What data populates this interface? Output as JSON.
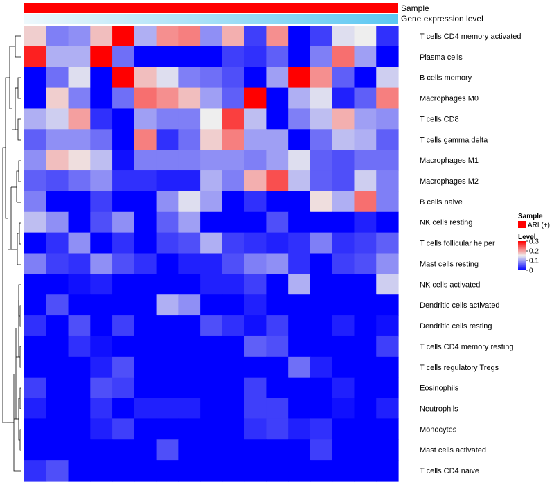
{
  "chart_data": {
    "type": "heatmap",
    "title": "",
    "xlabel": "",
    "ylabel": "",
    "column_annotations": [
      {
        "label": "Sample",
        "color": "#ff0000"
      },
      {
        "label": "Gene expression level",
        "gradient": [
          "#eef8fc",
          "#5bc7f2"
        ]
      }
    ],
    "n_columns": 17,
    "rows": [
      "T cells CD4 memory activated",
      "Plasma cells",
      "B cells memory",
      "Macrophages M0",
      "T cells CD8",
      "T cells gamma delta",
      "Macrophages M1",
      "Macrophages M2",
      "B cells naive",
      "NK cells resting",
      "T cells follicular helper",
      "Mast cells resting",
      "NK cells activated",
      "Dendritic cells activated",
      "Dendritic cells resting",
      "T cells CD4 memory resting",
      "T cells regulatory  Tregs",
      "Eosinophils",
      "Neutrophils",
      "Monocytes",
      "Mast cells activated",
      "T cells CD4 naive"
    ],
    "values": [
      [
        0.17,
        0.08,
        0.09,
        0.18,
        0.3,
        0.11,
        0.21,
        0.22,
        0.09,
        0.19,
        0.04,
        0.21,
        0.0,
        0.04,
        0.14,
        0.15,
        0.03
      ],
      [
        0.28,
        0.11,
        0.11,
        0.3,
        0.07,
        0.0,
        0.0,
        0.0,
        0.0,
        0.04,
        0.03,
        0.06,
        0.0,
        0.08,
        0.23,
        0.1,
        0.0
      ],
      [
        0.0,
        0.07,
        0.14,
        0.0,
        0.3,
        0.18,
        0.14,
        0.08,
        0.07,
        0.05,
        0.0,
        0.1,
        0.3,
        0.21,
        0.06,
        0.0,
        0.13
      ],
      [
        0.0,
        0.17,
        0.08,
        0.0,
        0.07,
        0.23,
        0.21,
        0.18,
        0.1,
        0.06,
        0.3,
        0.0,
        0.11,
        0.14,
        0.02,
        0.06,
        0.22
      ],
      [
        0.11,
        0.13,
        0.2,
        0.03,
        0.0,
        0.1,
        0.08,
        0.08,
        0.15,
        0.26,
        0.12,
        0.0,
        0.08,
        0.12,
        0.19,
        0.1,
        0.09
      ],
      [
        0.06,
        0.09,
        0.09,
        0.07,
        0.0,
        0.22,
        0.03,
        0.07,
        0.17,
        0.22,
        0.1,
        0.1,
        0.0,
        0.07,
        0.12,
        0.11,
        0.06
      ],
      [
        0.09,
        0.18,
        0.16,
        0.12,
        0.01,
        0.08,
        0.08,
        0.08,
        0.09,
        0.09,
        0.08,
        0.1,
        0.14,
        0.06,
        0.05,
        0.07,
        0.07
      ],
      [
        0.06,
        0.05,
        0.07,
        0.09,
        0.03,
        0.03,
        0.02,
        0.02,
        0.11,
        0.08,
        0.19,
        0.25,
        0.12,
        0.06,
        0.05,
        0.13,
        0.08
      ],
      [
        0.08,
        0.0,
        0.0,
        0.04,
        0.0,
        0.0,
        0.09,
        0.14,
        0.1,
        0.0,
        0.03,
        0.0,
        0.0,
        0.16,
        0.11,
        0.23,
        0.08
      ],
      [
        0.12,
        0.09,
        0.0,
        0.05,
        0.09,
        0.0,
        0.06,
        0.1,
        0.0,
        0.0,
        0.0,
        0.05,
        0.0,
        0.0,
        0.0,
        0.02,
        0.0
      ],
      [
        0.0,
        0.03,
        0.09,
        0.0,
        0.03,
        0.0,
        0.04,
        0.05,
        0.11,
        0.04,
        0.03,
        0.02,
        0.03,
        0.08,
        0.03,
        0.04,
        0.06
      ],
      [
        0.08,
        0.04,
        0.03,
        0.09,
        0.05,
        0.03,
        0.0,
        0.02,
        0.02,
        0.05,
        0.08,
        0.09,
        0.03,
        0.0,
        0.04,
        0.05,
        0.09
      ],
      [
        0.0,
        0.0,
        0.01,
        0.02,
        0.0,
        0.0,
        0.0,
        0.0,
        0.02,
        0.02,
        0.04,
        0.0,
        0.11,
        0.0,
        0.0,
        0.0,
        0.13
      ],
      [
        0.0,
        0.05,
        0.0,
        0.0,
        0.0,
        0.0,
        0.11,
        0.09,
        0.0,
        0.0,
        0.02,
        0.0,
        0.0,
        0.0,
        0.0,
        0.0,
        0.0
      ],
      [
        0.03,
        0.0,
        0.05,
        0.0,
        0.04,
        0.0,
        0.0,
        0.0,
        0.05,
        0.03,
        0.01,
        0.04,
        0.0,
        0.0,
        0.02,
        0.0,
        0.01
      ],
      [
        0.0,
        0.0,
        0.03,
        0.01,
        0.0,
        0.0,
        0.0,
        0.0,
        0.0,
        0.0,
        0.06,
        0.05,
        0.0,
        0.0,
        0.0,
        0.0,
        0.04
      ],
      [
        0.0,
        0.0,
        0.0,
        0.02,
        0.05,
        0.0,
        0.0,
        0.0,
        0.0,
        0.0,
        0.0,
        0.0,
        0.07,
        0.02,
        0.0,
        0.0,
        0.0
      ],
      [
        0.04,
        0.0,
        0.0,
        0.05,
        0.04,
        0.0,
        0.0,
        0.0,
        0.0,
        0.0,
        0.04,
        0.0,
        0.0,
        0.0,
        0.02,
        0.0,
        0.0
      ],
      [
        0.02,
        0.0,
        0.0,
        0.03,
        0.0,
        0.02,
        0.02,
        0.02,
        0.0,
        0.0,
        0.04,
        0.04,
        0.0,
        0.0,
        0.01,
        0.0,
        0.02
      ],
      [
        0.0,
        0.0,
        0.0,
        0.02,
        0.04,
        0.0,
        0.0,
        0.0,
        0.0,
        0.0,
        0.03,
        0.04,
        0.02,
        0.03,
        0.0,
        0.0,
        0.0
      ],
      [
        0.0,
        0.0,
        0.0,
        0.0,
        0.0,
        0.0,
        0.05,
        0.0,
        0.0,
        0.0,
        0.0,
        0.0,
        0.0,
        0.04,
        0.0,
        0.0,
        0.0
      ],
      [
        0.03,
        0.05,
        0.0,
        0.0,
        0.0,
        0.0,
        0.0,
        0.0,
        0.0,
        0.0,
        0.0,
        0.0,
        0.0,
        0.0,
        0.0,
        0.0,
        0.0
      ]
    ],
    "color_scale": {
      "min": 0,
      "mid": 0.15,
      "max": 0.3,
      "colors": [
        "#0000ff",
        "#eeeeee",
        "#ff0000"
      ]
    },
    "legend": {
      "position": "right",
      "sample": {
        "title": "Sample",
        "items": [
          {
            "label": "ARL(+)",
            "color": "#ff0000"
          }
        ]
      },
      "level": {
        "title": "Level",
        "ticks": [
          {
            "value": 0.3,
            "label": "0.3"
          },
          {
            "value": 0.2,
            "label": "0.2"
          },
          {
            "value": 0.1,
            "label": "0.1"
          },
          {
            "value": 0,
            "label": "0"
          }
        ]
      }
    },
    "dendrogram": {
      "side": "left",
      "type": "row-clustering"
    }
  }
}
